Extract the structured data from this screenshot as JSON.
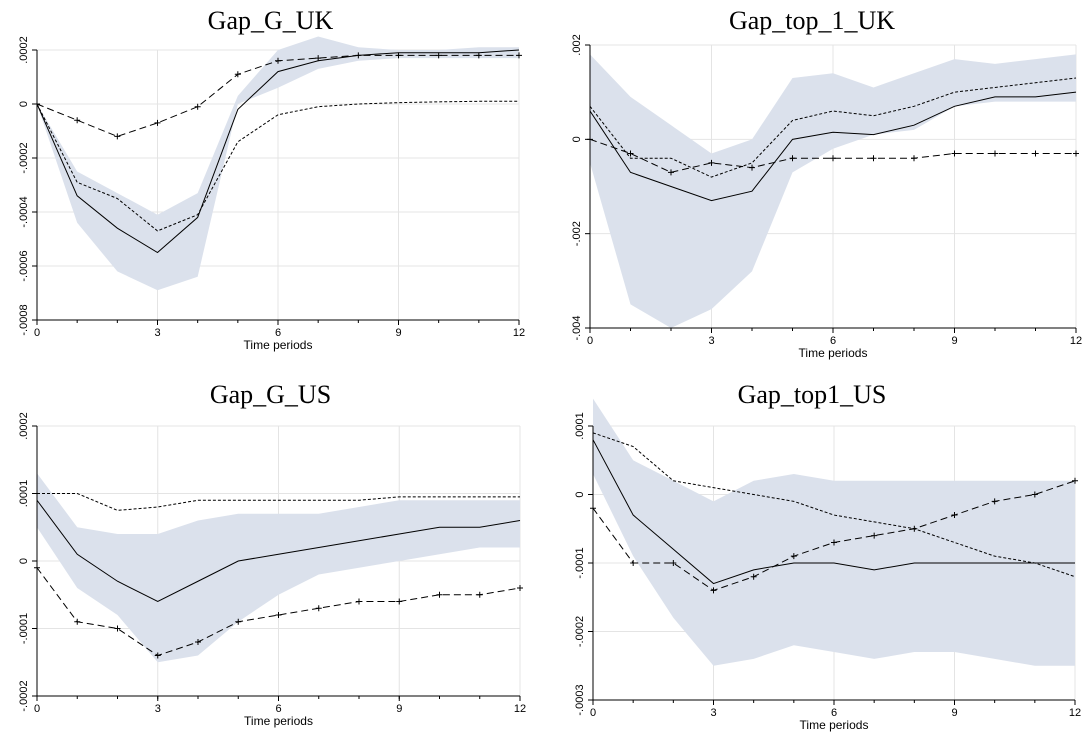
{
  "colors": {
    "band": "#dbe1ec",
    "grid": "#e4e4e4",
    "line": "#000000"
  },
  "chart_data": [
    {
      "type": "line",
      "title": "Gap_G_UK",
      "xlabel": "Time periods",
      "ylabel": "",
      "x": [
        0,
        1,
        2,
        3,
        4,
        5,
        6,
        7,
        8,
        9,
        10,
        11,
        12
      ],
      "xticks": [
        0,
        3,
        6,
        9,
        12
      ],
      "xlim": [
        0,
        12
      ],
      "ylim": [
        -0.0008,
        0.0002
      ],
      "yticks": [
        0.0002,
        0,
        -0.0002,
        -0.0004,
        -0.0006,
        -0.0008
      ],
      "yticklabels": [
        ".0002",
        "0",
        "-.0002",
        "-.0004",
        "-.0006",
        "-.0008"
      ],
      "band": {
        "lower": [
          0,
          -0.00044,
          -0.00062,
          -0.00069,
          -0.00064,
          0.0,
          6e-05,
          0.00013,
          0.00016,
          0.00017,
          0.00017,
          0.00017,
          0.00017
        ],
        "upper": [
          0,
          -0.00025,
          -0.00033,
          -0.00041,
          -0.00033,
          3e-05,
          0.0002,
          0.00025,
          0.00021,
          0.0002,
          0.0002,
          0.00021,
          0.00021
        ]
      },
      "series": [
        {
          "style": "solid",
          "marker": "none",
          "values": [
            0,
            -0.00034,
            -0.00046,
            -0.00055,
            -0.00042,
            -2e-05,
            0.00012,
            0.00016,
            0.00018,
            0.00019,
            0.00019,
            0.00019,
            0.0002
          ]
        },
        {
          "style": "short-dash",
          "marker": "none",
          "values": [
            0,
            -0.00029,
            -0.00035,
            -0.00047,
            -0.00041,
            -0.00014,
            -4e-05,
            -1e-05,
            0.0,
            5e-06,
            8e-06,
            1e-05,
            1e-05
          ]
        },
        {
          "style": "long-dash",
          "marker": "plus",
          "values": [
            0,
            -6e-05,
            -0.00012,
            -7e-05,
            -1e-05,
            0.00011,
            0.00016,
            0.00017,
            0.00018,
            0.00018,
            0.00018,
            0.00018,
            0.00018
          ]
        }
      ]
    },
    {
      "type": "line",
      "title": "Gap_top_1_UK",
      "xlabel": "Time periods",
      "ylabel": "",
      "x": [
        0,
        1,
        2,
        3,
        4,
        5,
        6,
        7,
        8,
        9,
        10,
        11,
        12
      ],
      "xticks": [
        0,
        3,
        6,
        9,
        12
      ],
      "xlim": [
        0,
        12
      ],
      "ylim": [
        -0.004,
        0.002
      ],
      "yticks": [
        0.002,
        0,
        -0.002,
        -0.004
      ],
      "yticklabels": [
        ".002",
        "0",
        "-.002",
        "-.004"
      ],
      "band": {
        "lower": [
          -0.0005,
          -0.0035,
          -0.004,
          -0.0036,
          -0.0028,
          -0.0007,
          -0.0002,
          0.0001,
          0.0002,
          0.0007,
          0.0008,
          0.0008,
          0.0008
        ],
        "upper": [
          0.0018,
          0.0009,
          0.0003,
          -0.0003,
          0.0,
          0.0013,
          0.0014,
          0.0011,
          0.0014,
          0.0017,
          0.0016,
          0.0017,
          0.0018
        ]
      },
      "series": [
        {
          "style": "solid",
          "marker": "none",
          "values": [
            0.0006,
            -0.0007,
            -0.001,
            -0.0013,
            -0.0011,
            0.0,
            0.00015,
            0.0001,
            0.0003,
            0.0007,
            0.0009,
            0.0009,
            0.001
          ]
        },
        {
          "style": "short-dash",
          "marker": "none",
          "values": [
            0.0007,
            -0.0004,
            -0.0004,
            -0.0008,
            -0.0005,
            0.0004,
            0.0006,
            0.0005,
            0.0007,
            0.001,
            0.0011,
            0.0012,
            0.0013
          ]
        },
        {
          "style": "long-dash",
          "marker": "plus",
          "values": [
            0.0,
            -0.0003,
            -0.0007,
            -0.0005,
            -0.0006,
            -0.0004,
            -0.0004,
            -0.0004,
            -0.0004,
            -0.0003,
            -0.0003,
            -0.0003,
            -0.0003
          ]
        }
      ]
    },
    {
      "type": "line",
      "title": "Gap_G_US",
      "xlabel": "Time periods",
      "ylabel": "",
      "x": [
        0,
        1,
        2,
        3,
        4,
        5,
        6,
        7,
        8,
        9,
        10,
        11,
        12
      ],
      "xticks": [
        0,
        3,
        6,
        9,
        12
      ],
      "xlim": [
        0,
        12
      ],
      "ylim": [
        -0.0002,
        0.0002
      ],
      "yticks": [
        0.0002,
        0.0001,
        0,
        -0.0001,
        -0.0002
      ],
      "yticklabels": [
        ".0002",
        ".0001",
        "0",
        "-.0001",
        "-.0002"
      ],
      "band": {
        "lower": [
          5e-05,
          -4e-05,
          -8e-05,
          -0.00015,
          -0.00014,
          -9e-05,
          -5e-05,
          -2e-05,
          -1e-05,
          0.0,
          1e-05,
          2e-05,
          2e-05
        ],
        "upper": [
          0.00013,
          5e-05,
          4e-05,
          4e-05,
          6e-05,
          7e-05,
          7e-05,
          7e-05,
          8e-05,
          9e-05,
          9e-05,
          9e-05,
          9e-05
        ]
      },
      "series": [
        {
          "style": "solid",
          "marker": "none",
          "values": [
            9e-05,
            1e-05,
            -3e-05,
            -6e-05,
            -3e-05,
            0.0,
            1e-05,
            2e-05,
            3e-05,
            4e-05,
            5e-05,
            5e-05,
            6e-05
          ]
        },
        {
          "style": "short-dash",
          "marker": "none",
          "values": [
            0.0001,
            0.0001,
            7.5e-05,
            8e-05,
            9e-05,
            9e-05,
            9e-05,
            9e-05,
            9e-05,
            9.5e-05,
            9.5e-05,
            9.5e-05,
            9.5e-05
          ]
        },
        {
          "style": "long-dash",
          "marker": "plus",
          "values": [
            -1e-05,
            -9e-05,
            -0.0001,
            -0.00014,
            -0.00012,
            -9e-05,
            -8e-05,
            -7e-05,
            -6e-05,
            -6e-05,
            -5e-05,
            -5e-05,
            -4e-05
          ]
        }
      ]
    },
    {
      "type": "line",
      "title": "Gap_top1_US",
      "xlabel": "Time periods",
      "ylabel": "",
      "x": [
        0,
        1,
        2,
        3,
        4,
        5,
        6,
        7,
        8,
        9,
        10,
        11,
        12
      ],
      "xticks": [
        0,
        3,
        6,
        9,
        12
      ],
      "xlim": [
        0,
        12
      ],
      "ylim": [
        -0.0003,
        0.0001
      ],
      "yticks": [
        0.0001,
        0,
        -0.0001,
        -0.0002,
        -0.0003
      ],
      "yticklabels": [
        ".0001",
        "0",
        "-.0001",
        "-.0002",
        "-.0003"
      ],
      "band": {
        "lower": [
          3e-05,
          -9e-05,
          -0.00018,
          -0.00025,
          -0.00024,
          -0.00022,
          -0.00023,
          -0.00024,
          -0.00023,
          -0.00023,
          -0.00024,
          -0.00025,
          -0.00025
        ],
        "upper": [
          0.00014,
          5e-05,
          2e-05,
          -1e-05,
          2e-05,
          3e-05,
          2e-05,
          2e-05,
          2e-05,
          2e-05,
          2e-05,
          2e-05,
          2e-05
        ]
      },
      "series": [
        {
          "style": "solid",
          "marker": "none",
          "values": [
            8e-05,
            -3e-05,
            -8e-05,
            -0.00013,
            -0.00011,
            -0.0001,
            -0.0001,
            -0.00011,
            -0.0001,
            -0.0001,
            -0.0001,
            -0.0001,
            -0.0001
          ]
        },
        {
          "style": "short-dash",
          "marker": "none",
          "values": [
            9e-05,
            7e-05,
            2e-05,
            1e-05,
            0.0,
            -1e-05,
            -3e-05,
            -4e-05,
            -5e-05,
            -7e-05,
            -9e-05,
            -0.0001,
            -0.00012
          ]
        },
        {
          "style": "long-dash",
          "marker": "plus",
          "values": [
            -2e-05,
            -0.0001,
            -0.0001,
            -0.00014,
            -0.00012,
            -9e-05,
            -7e-05,
            -6e-05,
            -5e-05,
            -3e-05,
            -1e-05,
            0.0,
            2e-05
          ]
        }
      ]
    }
  ]
}
